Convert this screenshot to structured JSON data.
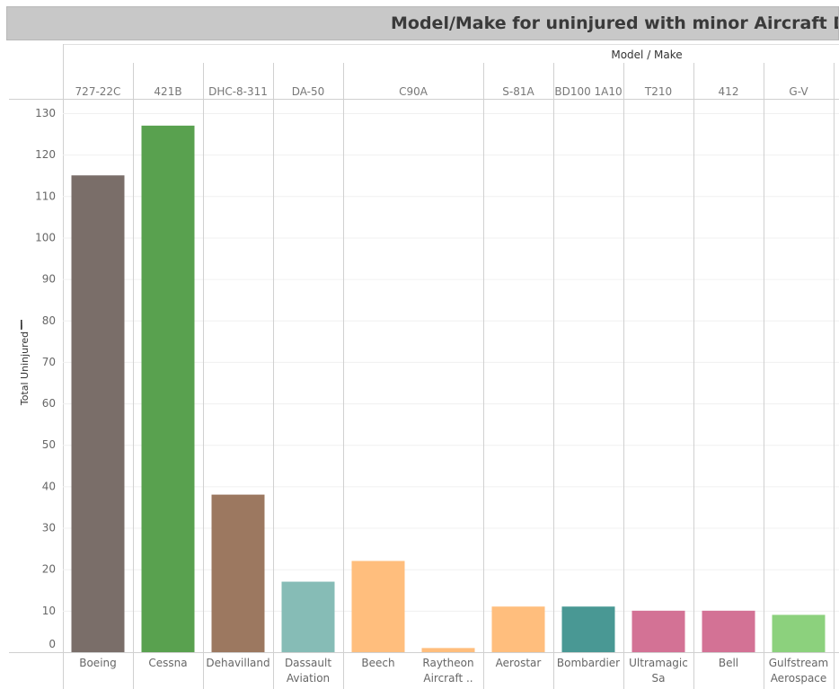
{
  "chart_data": {
    "type": "bar",
    "title": "Model/Make for uninjured with minor Aircraft Damag",
    "column_header": "Model / Make",
    "ylabel": "Total Uninjured",
    "ylim": [
      0,
      130
    ],
    "yticks": [
      0,
      10,
      20,
      30,
      40,
      50,
      60,
      70,
      80,
      90,
      100,
      110,
      120,
      130
    ],
    "groups": [
      {
        "model": "727-22C",
        "makes": [
          {
            "label": [
              "Boeing"
            ],
            "value": 115,
            "color": "#7a6e69"
          }
        ]
      },
      {
        "model": "421B",
        "makes": [
          {
            "label": [
              "Cessna"
            ],
            "value": 127,
            "color": "#59a14f"
          }
        ]
      },
      {
        "model": "DHC-8-311",
        "makes": [
          {
            "label": [
              "Dehavilland"
            ],
            "value": 38,
            "color": "#9c7860"
          }
        ]
      },
      {
        "model": "DA-50",
        "makes": [
          {
            "label": [
              "Dassault",
              "Aviation"
            ],
            "value": 17,
            "color": "#86bcb6"
          }
        ]
      },
      {
        "model": "C90A",
        "makes": [
          {
            "label": [
              "Beech"
            ],
            "value": 22,
            "color": "#ffbe7d"
          },
          {
            "label": [
              "Raytheon",
              "Aircraft .."
            ],
            "value": 1,
            "color": "#ffbe7d"
          }
        ]
      },
      {
        "model": "S-81A",
        "makes": [
          {
            "label": [
              "Aerostar"
            ],
            "value": 11,
            "color": "#ffbe7d"
          }
        ]
      },
      {
        "model": "BD100 1A10",
        "makes": [
          {
            "label": [
              "Bombardier"
            ],
            "value": 11,
            "color": "#499894"
          }
        ]
      },
      {
        "model": "T210",
        "makes": [
          {
            "label": [
              "Ultramagic",
              "Sa"
            ],
            "value": 10,
            "color": "#d37295"
          }
        ]
      },
      {
        "model": "412",
        "makes": [
          {
            "label": [
              "Bell"
            ],
            "value": 10,
            "color": "#d37295"
          }
        ]
      },
      {
        "model": "G-V",
        "makes": [
          {
            "label": [
              "Gulfstream",
              "Aerospace"
            ],
            "value": 9,
            "color": "#8cd17d"
          }
        ]
      }
    ]
  }
}
